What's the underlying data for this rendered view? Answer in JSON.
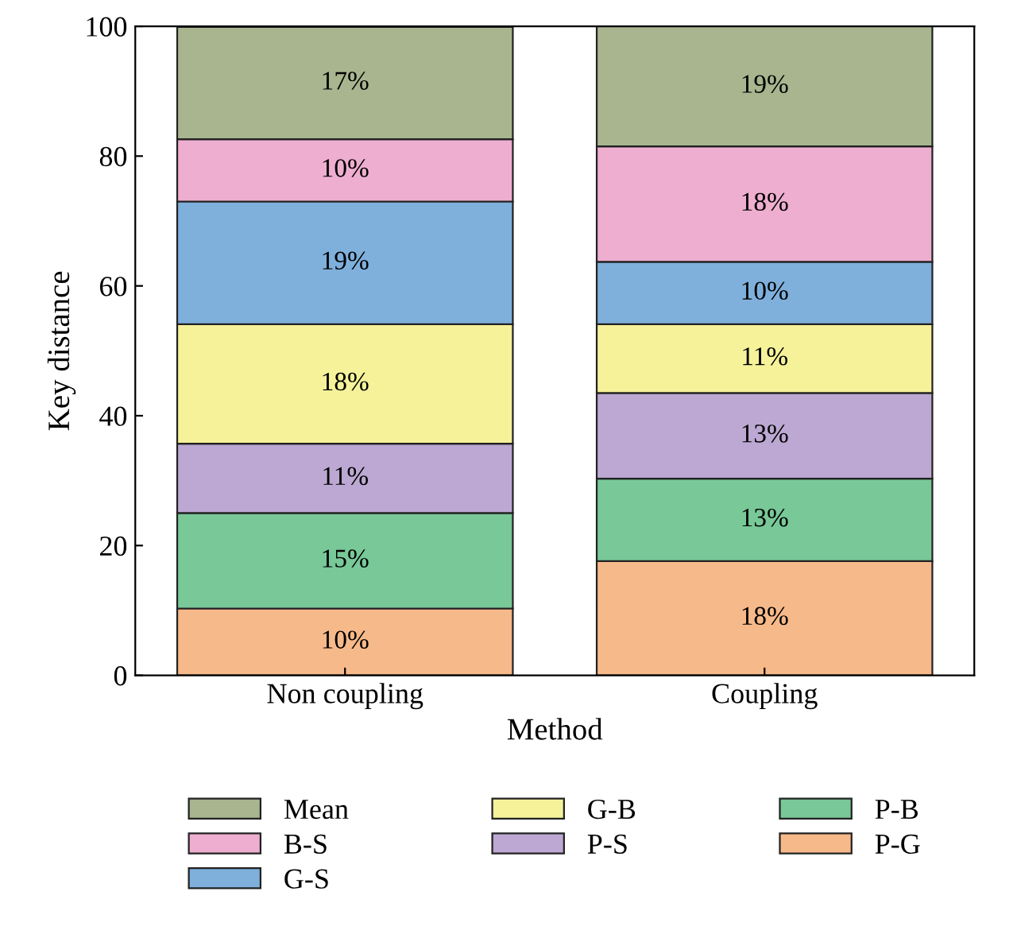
{
  "chart_data": {
    "type": "bar",
    "stacked": true,
    "xlabel": "Method",
    "ylabel": "Key distance",
    "categories": [
      "Non coupling",
      "Coupling"
    ],
    "ylim": [
      0,
      100
    ],
    "yticks": [
      0,
      20,
      40,
      60,
      80,
      100
    ],
    "grid": false,
    "legend": "bottom",
    "series": [
      {
        "name": "P-G",
        "color": "#f6b98a",
        "values": [
          10.3,
          17.6
        ],
        "value_labels": [
          "10%",
          "18%"
        ]
      },
      {
        "name": "P-B",
        "color": "#78c898",
        "values": [
          14.7,
          12.7
        ],
        "value_labels": [
          "15%",
          "13%"
        ]
      },
      {
        "name": "P-S",
        "color": "#bca8d2",
        "values": [
          10.7,
          13.2
        ],
        "value_labels": [
          "11%",
          "13%"
        ]
      },
      {
        "name": "G-B",
        "color": "#f5f29a",
        "values": [
          18.4,
          10.6
        ],
        "value_labels": [
          "18%",
          "11%"
        ]
      },
      {
        "name": "G-S",
        "color": "#7fb0dc",
        "values": [
          18.9,
          9.6
        ],
        "value_labels": [
          "19%",
          "10%"
        ]
      },
      {
        "name": "B-S",
        "color": "#eeaecf",
        "values": [
          9.6,
          17.8
        ],
        "value_labels": [
          "10%",
          "18%"
        ]
      },
      {
        "name": "Mean",
        "color": "#a8b58f",
        "values": [
          17.3,
          18.9
        ],
        "value_labels": [
          "17%",
          "19%"
        ]
      }
    ]
  }
}
